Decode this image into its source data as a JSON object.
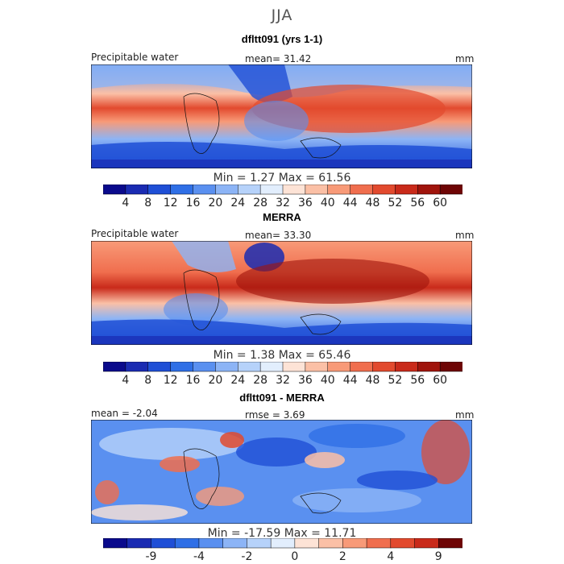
{
  "season": "JJA",
  "colors": {
    "pw_scale": [
      "#0a0a8c",
      "#1a2bb2",
      "#1f4fd6",
      "#2f6fe6",
      "#5a90f0",
      "#8cb4f6",
      "#b6d2fa",
      "#e2eefd",
      "#fde3d6",
      "#fbc0a6",
      "#f89a78",
      "#f06e4e",
      "#e24a2e",
      "#c92a1a",
      "#a0140c",
      "#6e0505"
    ],
    "diff_scale": [
      "#0a0a8c",
      "#1a2bb2",
      "#1f4fd6",
      "#2f6fe6",
      "#5a90f0",
      "#8cb4f6",
      "#b6d2fa",
      "#e2eefd",
      "#fde3d6",
      "#fbc0a6",
      "#f89a78",
      "#f06e4e",
      "#e24a2e",
      "#c92a1a",
      "#6e0505"
    ]
  },
  "panels": [
    {
      "title": "dfltt091 (yrs 1-1)",
      "left_label": "Precipitable water",
      "center_label": "mean=   31.42",
      "right_label": "mm",
      "minmax": "Min =    1.27  Max =  61.56",
      "colorbar_labels": [
        "4",
        "8",
        "12",
        "16",
        "20",
        "24",
        "28",
        "32",
        "36",
        "40",
        "44",
        "48",
        "52",
        "56",
        "60"
      ]
    },
    {
      "title": "MERRA",
      "left_label": "Precipitable water",
      "center_label": "mean=   33.30",
      "right_label": "mm",
      "minmax": "Min =    1.38  Max =  65.46",
      "colorbar_labels": [
        "4",
        "8",
        "12",
        "16",
        "20",
        "24",
        "28",
        "32",
        "36",
        "40",
        "44",
        "48",
        "52",
        "56",
        "60"
      ]
    },
    {
      "title": "dfltt091 - MERRA",
      "left_label": "mean =  -2.04",
      "center_label": "rmse =   3.69",
      "right_label": "mm",
      "minmax": "Min = -17.59  Max =  11.71",
      "colorbar_labels": [
        "-9",
        "-4",
        "-2",
        "0",
        "2",
        "4",
        "9"
      ]
    }
  ]
}
